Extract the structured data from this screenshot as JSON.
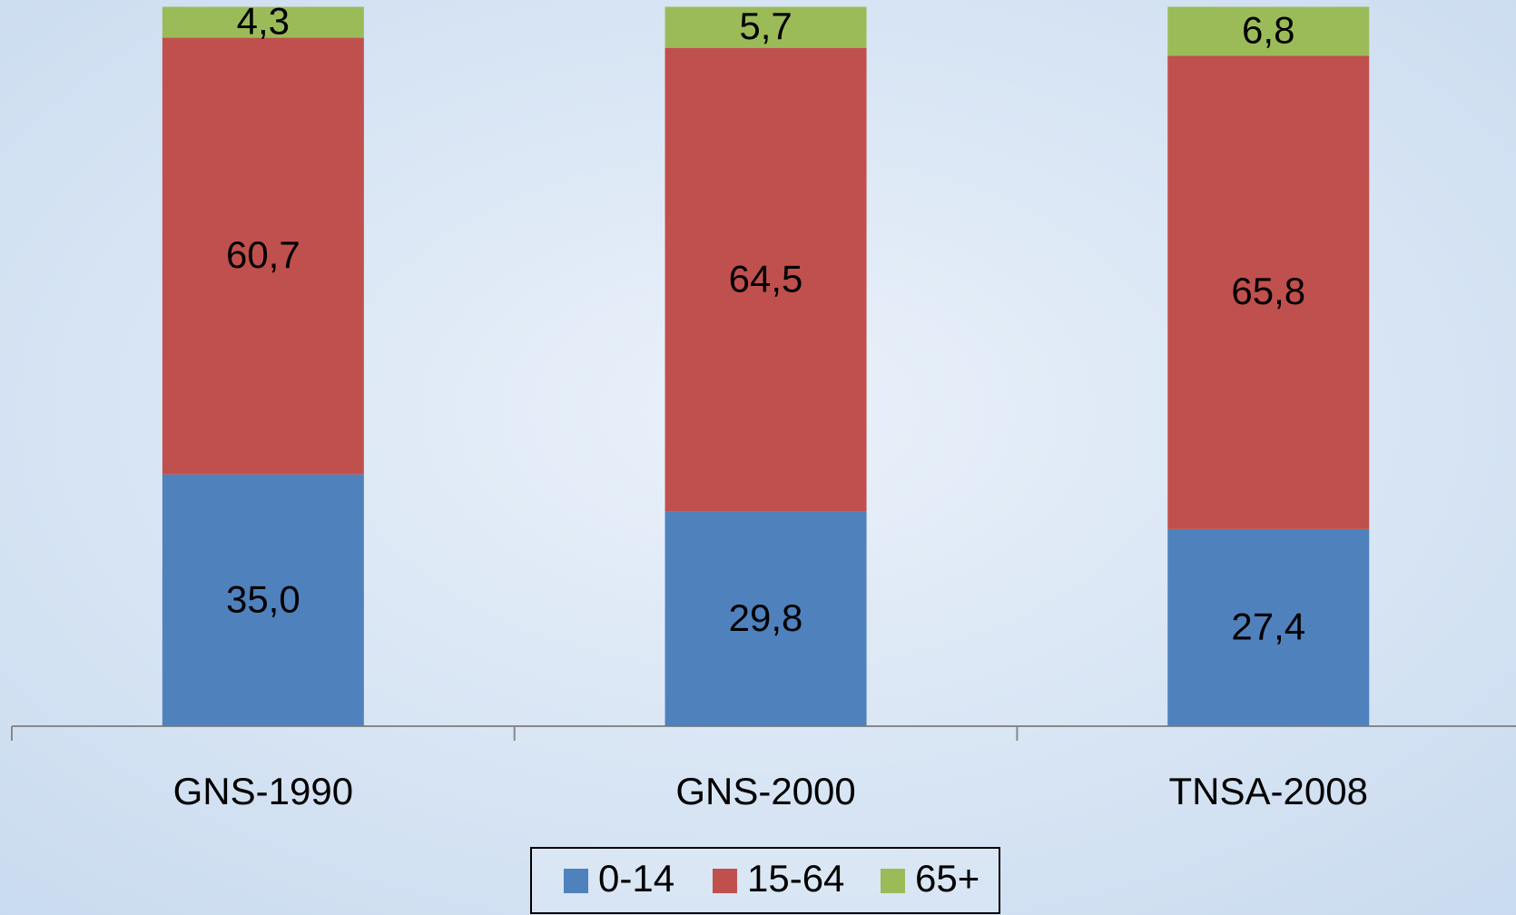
{
  "chart_data": {
    "type": "stacked-bar",
    "categories": [
      "GNS-1990",
      "GNS-2000",
      "TNSA-2008"
    ],
    "series": [
      {
        "name": "0-14",
        "color": "#4f81bd",
        "values": [
          35.0,
          29.8,
          27.4
        ],
        "value_labels": [
          "35,0",
          "29,8",
          "27,4"
        ]
      },
      {
        "name": "15-64",
        "color": "#c0504d",
        "values": [
          60.7,
          64.5,
          65.8
        ],
        "value_labels": [
          "60,7",
          "64,5",
          "65,8"
        ]
      },
      {
        "name": "65+",
        "color": "#9bbb59",
        "values": [
          4.3,
          5.7,
          6.8
        ],
        "value_labels": [
          "4,3",
          "5,7",
          "6,8"
        ]
      }
    ]
  }
}
